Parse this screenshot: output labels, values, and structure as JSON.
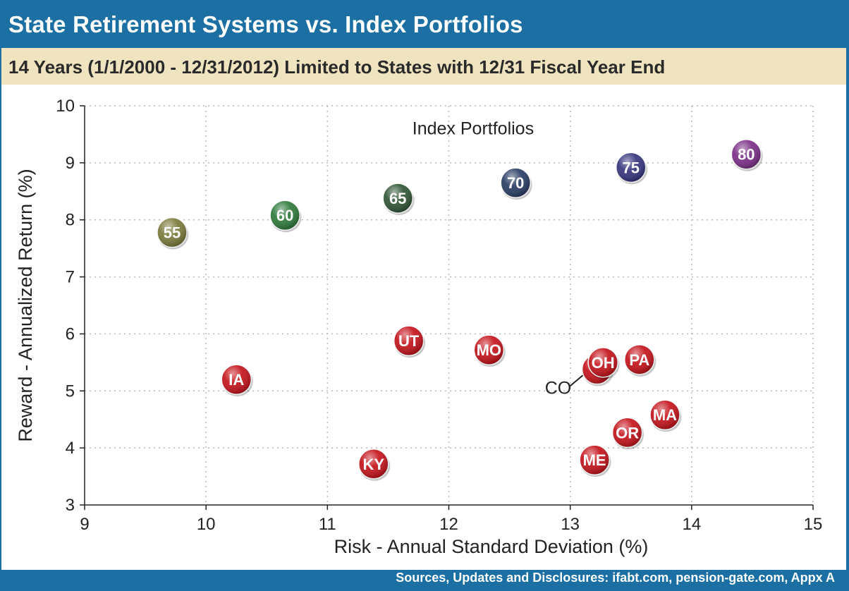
{
  "header": {
    "title": "State Retirement Systems vs. Index Portfolios",
    "subtitle": "14 Years (1/1/2000 - 12/31/2012)  Limited to States with 12/31 Fiscal Year End"
  },
  "footer": {
    "sources": "Sources, Updates and Disclosures: ifabt.com, pension-gate.com, Appx A"
  },
  "colors": {
    "header_bg": "#1b6fa3",
    "subtitle_bg": "#f0e3bf",
    "state_marker": "#c4121a"
  },
  "chart_data": {
    "type": "scatter",
    "title": "State Retirement Systems vs. Index Portfolios",
    "xlabel": "Risk - Annual Standard Deviation (%)",
    "ylabel": "Reward - Annualized Return (%)",
    "xlim": [
      9,
      15
    ],
    "ylim": [
      3,
      10
    ],
    "xticks": [
      "9",
      "10",
      "11",
      "12",
      "13",
      "14",
      "15"
    ],
    "yticks": [
      "3",
      "4",
      "5",
      "6",
      "7",
      "8",
      "9",
      "10"
    ],
    "grid": true,
    "annotations": [
      {
        "text": "Index Portfolios",
        "x": 12.2,
        "y": 9.5
      },
      {
        "text": "CO",
        "x": 12.9,
        "y": 4.95
      }
    ],
    "series": [
      {
        "points": [
          {
            "label": "55",
            "x": 9.72,
            "y": 7.78,
            "color": "#7a7a3a"
          },
          {
            "label": "60",
            "x": 10.65,
            "y": 8.08,
            "color": "#2e7a3a"
          },
          {
            "label": "65",
            "x": 11.58,
            "y": 8.38,
            "color": "#2f5535"
          },
          {
            "label": "70",
            "x": 12.55,
            "y": 8.65,
            "color": "#283c64"
          },
          {
            "label": "75",
            "x": 13.5,
            "y": 8.92,
            "color": "#34347e"
          },
          {
            "label": "80",
            "x": 14.45,
            "y": 9.15,
            "color": "#7a2e86"
          }
        ]
      },
      {
        "points": [
          {
            "label": "IA",
            "x": 10.25,
            "y": 5.2
          },
          {
            "label": "UT",
            "x": 11.67,
            "y": 5.88
          },
          {
            "label": "KY",
            "x": 11.38,
            "y": 3.72
          },
          {
            "label": "MO",
            "x": 12.33,
            "y": 5.72
          },
          {
            "label": "",
            "x": 13.22,
            "y": 5.38
          },
          {
            "label": "OH",
            "x": 13.27,
            "y": 5.5
          },
          {
            "label": "PA",
            "x": 13.57,
            "y": 5.55
          },
          {
            "label": "MA",
            "x": 13.78,
            "y": 4.58
          },
          {
            "label": "OR",
            "x": 13.47,
            "y": 4.27
          },
          {
            "label": "ME",
            "x": 13.2,
            "y": 3.79
          }
        ]
      }
    ]
  }
}
